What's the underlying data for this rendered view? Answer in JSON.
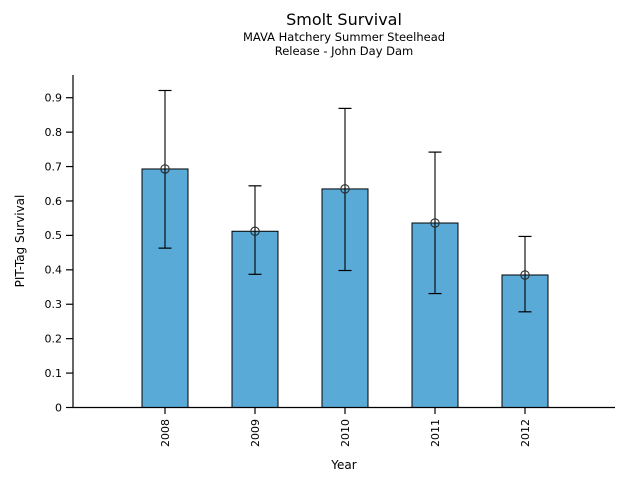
{
  "chart_data": {
    "type": "bar",
    "title": "Smolt Survival",
    "subtitle": [
      "MAVA Hatchery Summer Steelhead",
      "Release - John Day Dam"
    ],
    "xlabel": "Year",
    "ylabel": "PIT-Tag Survival",
    "categories": [
      "2008",
      "2009",
      "2010",
      "2011",
      "2012"
    ],
    "series": [
      {
        "name": "PIT-Tag Survival",
        "values": [
          0.693,
          0.512,
          0.635,
          0.536,
          0.385
        ],
        "error_low": [
          0.463,
          0.387,
          0.398,
          0.331,
          0.278
        ],
        "error_high": [
          0.921,
          0.644,
          0.869,
          0.742,
          0.497
        ]
      }
    ],
    "yticks": [
      0,
      0.1,
      0.2,
      0.3,
      0.4,
      0.5,
      0.6,
      0.7,
      0.8,
      0.9
    ],
    "ytick_labels": [
      "0",
      "0.1",
      "0.2",
      "0.3",
      "0.4",
      "0.5",
      "0.6",
      "0.7",
      "0.8",
      "0.9"
    ],
    "ylim": [
      0,
      0.966
    ],
    "grid": false,
    "legend": null,
    "marker": "open-circle",
    "colors": {
      "bar_fill": "#5aaad7",
      "bar_edge": "#000000",
      "error_bar": "#000000",
      "marker_edge": "#2b2b2b",
      "axis": "#000000",
      "text": "#000000",
      "background": "#ffffff"
    }
  }
}
